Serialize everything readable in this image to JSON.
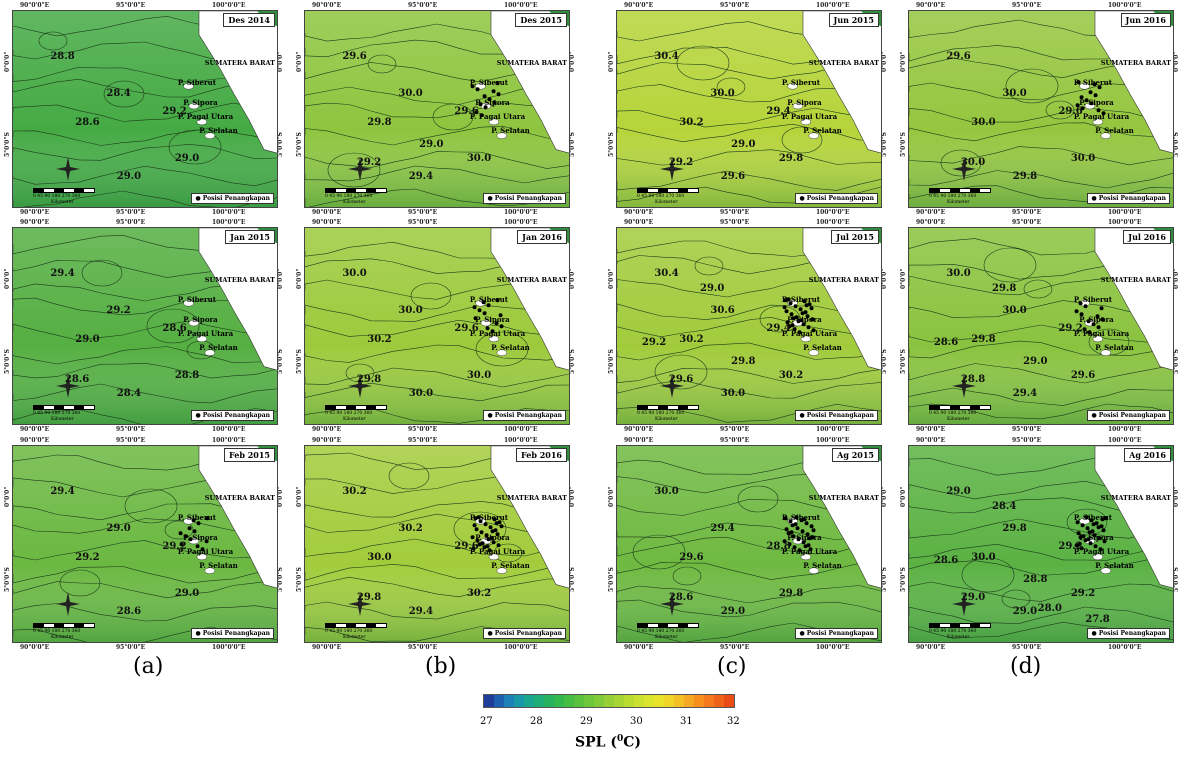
{
  "ticks": {
    "x1": "90°0'0\"E",
    "x2": "95°0'0\"E",
    "x3": "100°0'0\"E",
    "y1": "0°0'0\"",
    "y2": "5°0'0\"S"
  },
  "labels": {
    "region": "SUMATERA BARAT",
    "islands": [
      "P. Siberut",
      "P. Sipora",
      "P. Pagai Utara",
      "P. Selatan"
    ],
    "legend": "Posisi Penangkapan",
    "scale_text": "0 45 90   180   270   360",
    "scale_unit": "Kilometer"
  },
  "columns": [
    "(a)",
    "(b)",
    "(c)",
    "(d)"
  ],
  "panels": [
    {
      "date": "Des 2014",
      "col": 0,
      "row": 0,
      "tint": "#45aa44",
      "contours": [
        "28.8",
        "28.4",
        "28.6",
        "29.0",
        "29.0",
        "29.2"
      ],
      "dots": 0
    },
    {
      "date": "Des 2015",
      "col": 1,
      "row": 0,
      "tint": "#8ec53f",
      "contours": [
        "29.6",
        "30.0",
        "29.8",
        "30.0",
        "29.4",
        "29.6",
        "29.2",
        "29.0"
      ],
      "dots": 1
    },
    {
      "date": "Jun 2015",
      "col": 2,
      "row": 0,
      "tint": "#b6d43a",
      "contours": [
        "30.4",
        "30.0",
        "30.2",
        "29.8",
        "29.6",
        "29.4",
        "29.2",
        "29.0"
      ],
      "dots": 0
    },
    {
      "date": "Jun 2016",
      "col": 3,
      "row": 0,
      "tint": "#95c63f",
      "contours": [
        "29.6",
        "30.0",
        "30.0",
        "30.0",
        "29.8",
        "29.6",
        "30.0"
      ],
      "dots": 1
    },
    {
      "date": "Jan 2015",
      "col": 0,
      "row": 1,
      "tint": "#55af42",
      "contours": [
        "29.4",
        "29.2",
        "29.0",
        "28.8",
        "28.4",
        "28.6",
        "28.6"
      ],
      "dots": 0
    },
    {
      "date": "Jan 2016",
      "col": 1,
      "row": 1,
      "tint": "#9cca3c",
      "contours": [
        "30.0",
        "30.0",
        "30.2",
        "30.0",
        "30.0",
        "29.6",
        "29.8"
      ],
      "dots": 1
    },
    {
      "date": "Jul 2015",
      "col": 2,
      "row": 1,
      "tint": "#a2cb3c",
      "contours": [
        "30.4",
        "30.6",
        "30.2",
        "30.2",
        "30.0",
        "29.4",
        "29.6",
        "29.8",
        "29.2",
        "29.0"
      ],
      "dots": 2
    },
    {
      "date": "Jul 2016",
      "col": 3,
      "row": 1,
      "tint": "#8ac33f",
      "contours": [
        "30.0",
        "30.0",
        "29.8",
        "29.6",
        "29.4",
        "29.2",
        "28.8",
        "29.0",
        "28.6",
        "29.8"
      ],
      "dots": 1
    },
    {
      "date": "Feb 2015",
      "col": 0,
      "row": 2,
      "tint": "#6bb841",
      "contours": [
        "29.4",
        "29.0",
        "29.2",
        "29.0",
        "28.6",
        "29.2"
      ],
      "dots": 1
    },
    {
      "date": "Feb 2016",
      "col": 1,
      "row": 2,
      "tint": "#a3cc3c",
      "contours": [
        "30.2",
        "30.2",
        "30.0",
        "30.2",
        "29.4",
        "29.6",
        "29.8"
      ],
      "dots": 2
    },
    {
      "date": "Ag 2015",
      "col": 2,
      "row": 2,
      "tint": "#6fb941",
      "contours": [
        "30.0",
        "29.4",
        "29.6",
        "29.8",
        "29.0",
        "28.8",
        "28.6"
      ],
      "dots": 2
    },
    {
      "date": "Ag 2016",
      "col": 3,
      "row": 2,
      "tint": "#5bb243",
      "contours": [
        "29.0",
        "29.8",
        "30.0",
        "29.2",
        "29.0",
        "29.2",
        "29.0",
        "28.8",
        "28.6",
        "28.4",
        "28.0",
        "27.8"
      ],
      "dots": 2
    }
  ],
  "colorbar": {
    "ticks": [
      "27",
      "28",
      "29",
      "30",
      "31",
      "32"
    ],
    "title": "SPL (",
    "title_sup": "0",
    "title_end": "C)",
    "colors": [
      "#1f3d99",
      "#1f5fb0",
      "#1f80b8",
      "#1a98a8",
      "#1aa68f",
      "#1eae76",
      "#26b35f",
      "#33b84e",
      "#46bd43",
      "#5ac13e",
      "#6ec63b",
      "#82cb38",
      "#96d036",
      "#a8d533",
      "#badb31",
      "#cbe02f",
      "#dce52d",
      "#e8e32a",
      "#f0d628",
      "#f5c025",
      "#f7a822",
      "#f78f1f",
      "#f5781c",
      "#f06219",
      "#ea4c16"
    ]
  }
}
